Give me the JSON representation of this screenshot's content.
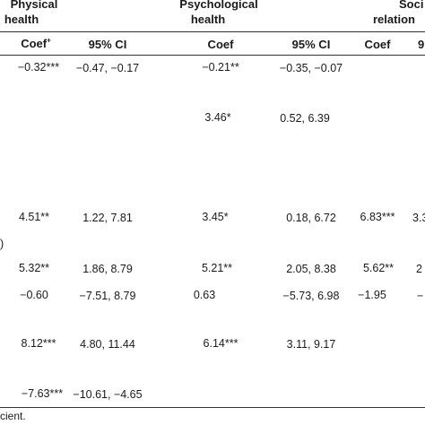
{
  "groups": [
    {
      "line1": "Physical",
      "line2": "health"
    },
    {
      "line1": "Psychological",
      "line2": "health"
    },
    {
      "line1": "Soci",
      "line2": "relation"
    }
  ],
  "columns": {
    "phys_coef": "Coef",
    "phys_coef_sup": "+",
    "phys_ci": "95% CI",
    "psych_coef": "Coef",
    "psych_ci": "95% CI",
    "soc_coef": "Coef",
    "soc_ci_partial": "9"
  },
  "rows": [
    {
      "phys_coef": "−0.32***",
      "phys_ci": "−0.47, −0.17",
      "psych_coef": "−0.21**",
      "psych_ci": "−0.35, −0.07",
      "soc_coef": "",
      "soc_ci": ""
    },
    {
      "phys_coef": "",
      "phys_ci": "",
      "psych_coef": "3.46*",
      "psych_ci": "0.52, 6.39",
      "soc_coef": "",
      "soc_ci": ""
    },
    {
      "phys_coef": "4.51**",
      "phys_ci": "1.22, 7.81",
      "psych_coef": "3.45*",
      "psych_ci": "0.18, 6.72",
      "soc_coef": "6.83***",
      "soc_ci": "3.3"
    },
    {
      "phys_coef": "5.32**",
      "phys_ci": "1.86, 8.79",
      "psych_coef": "5.21**",
      "psych_ci": "2.05, 8.38",
      "soc_coef": "5.62**",
      "soc_ci": "2"
    },
    {
      "phys_coef": "−0.60",
      "phys_ci": "−7.51, 8.79",
      "psych_coef": "0.63",
      "psych_ci": "−5.73, 6.98",
      "soc_coef": "−1.95",
      "soc_ci": "−"
    },
    {
      "phys_coef": "8.12***",
      "phys_ci": "4.80, 11.44",
      "psych_coef": "6.14***",
      "psych_ci": "3.11, 9.17",
      "soc_coef": "",
      "soc_ci": ""
    },
    {
      "phys_coef": "−7.63***",
      "phys_ci": "−10.61, −4.65",
      "psych_coef": "",
      "psych_ci": "",
      "soc_coef": "",
      "soc_ci": ""
    }
  ],
  "row_label_fragment": ")",
  "footnote_fragment": "cient."
}
